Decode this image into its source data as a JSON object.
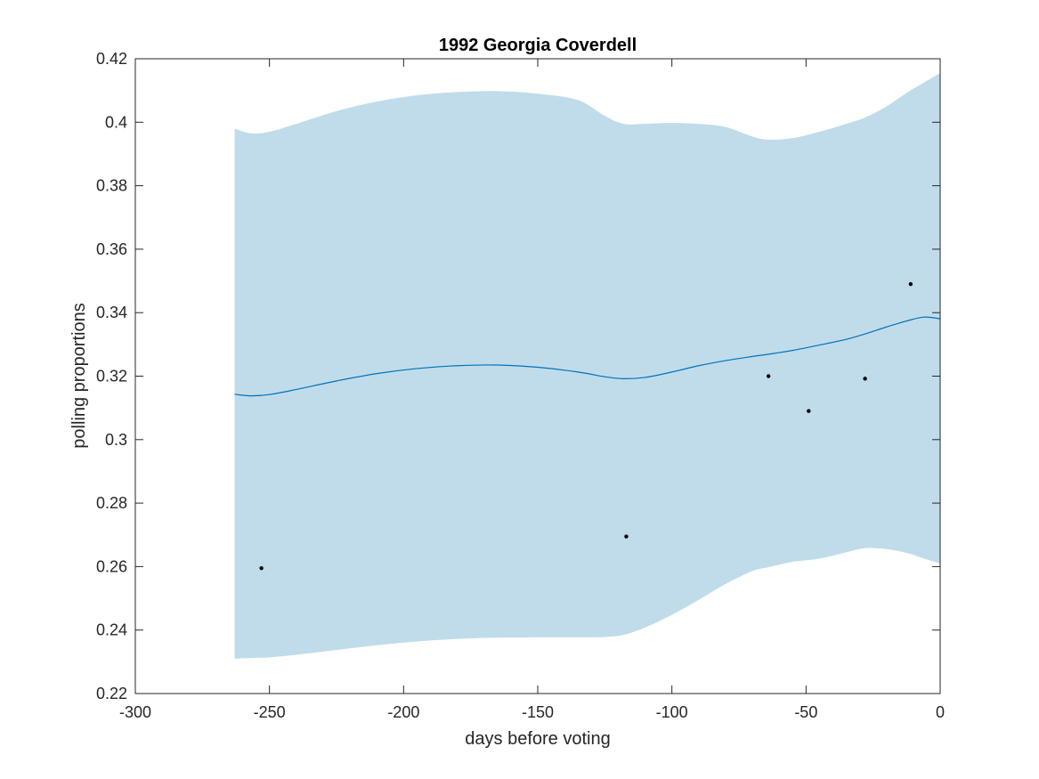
{
  "chart_data": {
    "type": "line",
    "title": "1992 Georgia Coverdell",
    "xlabel": "days before voting",
    "ylabel": "polling proportions",
    "xlim": [
      -300,
      0
    ],
    "ylim": [
      0.22,
      0.42
    ],
    "xticks": [
      -300,
      -250,
      -200,
      -150,
      -100,
      -50,
      0
    ],
    "xtick_labels": [
      "-300",
      "-250",
      "-200",
      "-150",
      "-100",
      "-50",
      "0"
    ],
    "yticks": [
      0.22,
      0.24,
      0.26,
      0.28,
      0.3,
      0.32,
      0.34,
      0.36,
      0.38,
      0.4,
      0.42
    ],
    "ytick_labels": [
      "0.22",
      "0.24",
      "0.26",
      "0.28",
      "0.3",
      "0.32",
      "0.34",
      "0.36",
      "0.38",
      "0.4",
      "0.42"
    ],
    "grid": false,
    "colors": {
      "band": "#c0dcea",
      "mean_line": "#0072bd",
      "points": "#000000",
      "axis": "#262626"
    },
    "band": {
      "x": [
        -263,
        -257,
        -250,
        -240,
        -225,
        -210,
        -195,
        -180,
        -165,
        -150,
        -135,
        -125,
        -118,
        -110,
        -100,
        -90,
        -80,
        -70,
        -64,
        -55,
        -45,
        -35,
        -28,
        -20,
        -12,
        -6,
        0
      ],
      "upper": [
        0.398,
        0.3965,
        0.397,
        0.3995,
        0.4035,
        0.4065,
        0.4085,
        0.4095,
        0.4098,
        0.409,
        0.407,
        0.402,
        0.3995,
        0.3995,
        0.3998,
        0.3995,
        0.3985,
        0.3955,
        0.3945,
        0.395,
        0.397,
        0.3995,
        0.4015,
        0.405,
        0.4095,
        0.4125,
        0.4155
      ],
      "lower": [
        0.231,
        0.2312,
        0.2314,
        0.2322,
        0.2337,
        0.2352,
        0.2364,
        0.2372,
        0.2376,
        0.2377,
        0.2377,
        0.2378,
        0.2385,
        0.2408,
        0.2448,
        0.2495,
        0.2545,
        0.2586,
        0.2598,
        0.2615,
        0.2625,
        0.2645,
        0.2658,
        0.2655,
        0.2642,
        0.2625,
        0.261
      ]
    },
    "mean": {
      "x": [
        -263,
        -257,
        -250,
        -240,
        -225,
        -210,
        -195,
        -180,
        -165,
        -150,
        -135,
        -125,
        -118,
        -110,
        -100,
        -90,
        -80,
        -70,
        -64,
        -55,
        -45,
        -35,
        -28,
        -20,
        -12,
        -6,
        0
      ],
      "y": [
        0.3143,
        0.3138,
        0.3142,
        0.3158,
        0.3185,
        0.3208,
        0.3224,
        0.3233,
        0.3235,
        0.3228,
        0.3213,
        0.3198,
        0.3192,
        0.3196,
        0.3213,
        0.3233,
        0.3249,
        0.3262,
        0.3269,
        0.3281,
        0.3298,
        0.3316,
        0.3333,
        0.3355,
        0.3375,
        0.3386,
        0.3381
      ]
    },
    "points": {
      "x": [
        -253,
        -117,
        -64,
        -49,
        -28,
        -11
      ],
      "y": [
        0.2595,
        0.2695,
        0.32,
        0.309,
        0.3192,
        0.349
      ]
    }
  }
}
